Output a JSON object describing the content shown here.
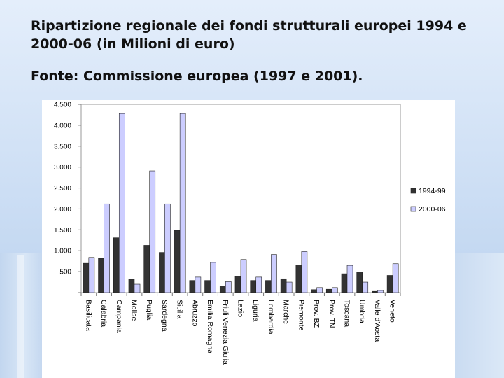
{
  "slide": {
    "title": "Ripartizione regionale dei fondi strutturali europei 1994 e 2000-06 (in Milioni di euro)",
    "source": "Fonte: Commissione europea (1997 e 2001)."
  },
  "colors": {
    "series_1994": "#333333",
    "series_2000": "#cccdff",
    "background_top": "#e4eefb",
    "background_bottom": "#b4cdec"
  },
  "chart_data": {
    "type": "bar",
    "categories": [
      "Basilicata",
      "Calabria",
      "Campania",
      "Molise",
      "Puglia",
      "Sardegna",
      "Sicilia",
      "Abruzzo",
      "Emilia Romagna",
      "Friuli Venezia Giulia",
      "Lazio",
      "Liguria",
      "Lombardia",
      "Marche",
      "Piemonte",
      "Prov. BZ",
      "Prov. TN",
      "Toscana",
      "Umbria",
      "Valle d'Aosta",
      "Veneto"
    ],
    "series": [
      {
        "name": "1994-99",
        "values": [
          700,
          820,
          1310,
          320,
          1130,
          960,
          1490,
          290,
          290,
          160,
          390,
          290,
          290,
          330,
          660,
          70,
          80,
          450,
          490,
          30,
          410
        ]
      },
      {
        "name": "2000-06",
        "values": [
          840,
          2120,
          4280,
          200,
          2910,
          2120,
          4280,
          370,
          720,
          260,
          790,
          370,
          910,
          250,
          980,
          120,
          120,
          650,
          250,
          50,
          690
        ]
      }
    ],
    "yticks": [
      "-",
      "500",
      "1.000",
      "1.500",
      "2.000",
      "2.500",
      "3.000",
      "3.500",
      "4.000",
      "4.500"
    ],
    "ylim": [
      0,
      4500
    ],
    "grid": false,
    "legend_position": "right"
  }
}
